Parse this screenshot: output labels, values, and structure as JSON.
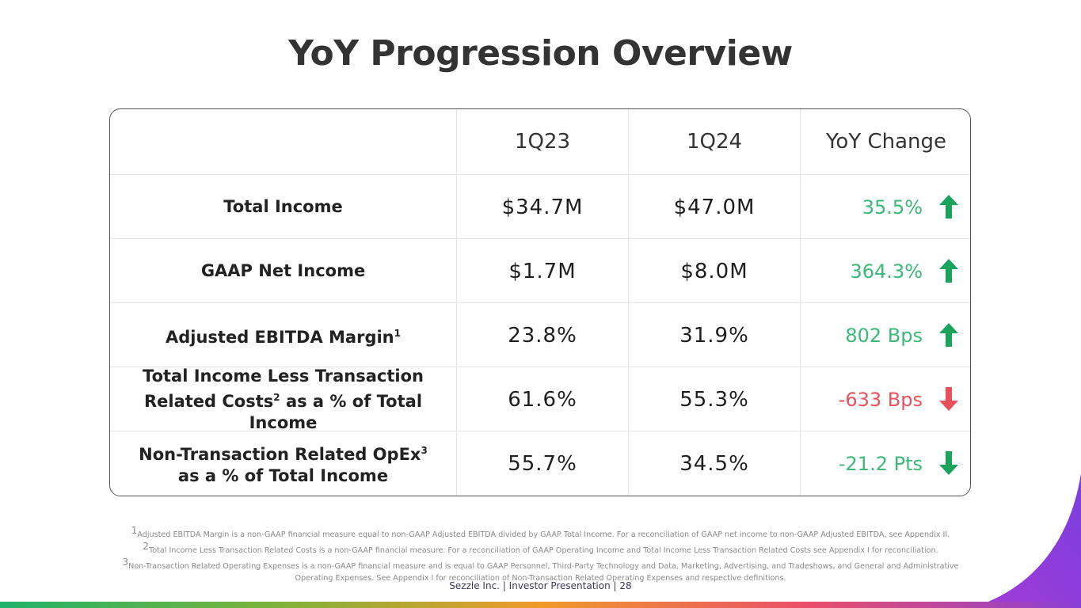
{
  "title": "YoY Progression Overview",
  "table": {
    "headers": [
      "",
      "1Q23",
      "1Q24",
      "YoY Change"
    ],
    "rows": [
      {
        "label_lines": [
          "Total Income"
        ],
        "label_sup": "",
        "label_tail": "",
        "q1_23": "$34.7M",
        "q1_24": "$47.0M",
        "change": "35.5%",
        "direction": "up",
        "tone": "positive"
      },
      {
        "label_lines": [
          "GAAP Net Income"
        ],
        "label_sup": "",
        "label_tail": "",
        "q1_23": "$1.7M",
        "q1_24": "$8.0M",
        "change": "364.3%",
        "direction": "up",
        "tone": "positive"
      },
      {
        "label_lines": [
          "Adjusted EBITDA Margin"
        ],
        "label_sup": "1",
        "label_tail": "",
        "q1_23": "23.8%",
        "q1_24": "31.9%",
        "change": "802 Bps",
        "direction": "up",
        "tone": "positive"
      },
      {
        "label_lines": [
          "Total Income Less Transaction",
          "Related Costs"
        ],
        "label_sup": "2",
        "label_tail": " as a % of Total Income",
        "q1_23": "61.6%",
        "q1_24": "55.3%",
        "change": "-633 Bps",
        "direction": "down",
        "tone": "negative"
      },
      {
        "label_lines": [
          "Non-Transaction Related OpEx"
        ],
        "label_sup": "3",
        "label_tail": "as a % of Total Income",
        "q1_23": "55.7%",
        "q1_24": "34.5%",
        "change": "-21.2 Pts",
        "direction": "down",
        "tone": "positive"
      }
    ]
  },
  "colors": {
    "positive": "#3cb878",
    "negative": "#e8505b",
    "arrow_up": "#1aa35c",
    "arrow_down_negative": "#e8505b",
    "arrow_down_positive": "#1aa35c"
  },
  "footnotes": [
    "Adjusted EBITDA Margin is a non-GAAP financial measure equal to non-GAAP Adjusted EBITDA divided by GAAP Total Income. For a reconciliation of GAAP net income to non-GAAP Adjusted EBITDA, see Appendix II.",
    "Total Income Less Transaction Related Costs is a non-GAAP financial measure. For a reconciliation of GAAP Operating Income and Total Income Less Transaction Related Costs see Appendix I for reconciliation.",
    "Non-Transaction Related Operating Expenses is a non-GAAP financial measure and is equal to GAAP Personnel, Third-Party Technology and Data, Marketing, Advertising, and Tradeshows, and General and Administrative",
    "Operating Expenses. See Appendix I for reconciliation of Non-Transaction Related Operating Expenses and respective definitions."
  ],
  "footnote_marks": [
    "1",
    "2",
    "3",
    ""
  ],
  "footer": {
    "company": "Sezzle Inc.",
    "doc": "Investor Presentation",
    "page": "28"
  }
}
